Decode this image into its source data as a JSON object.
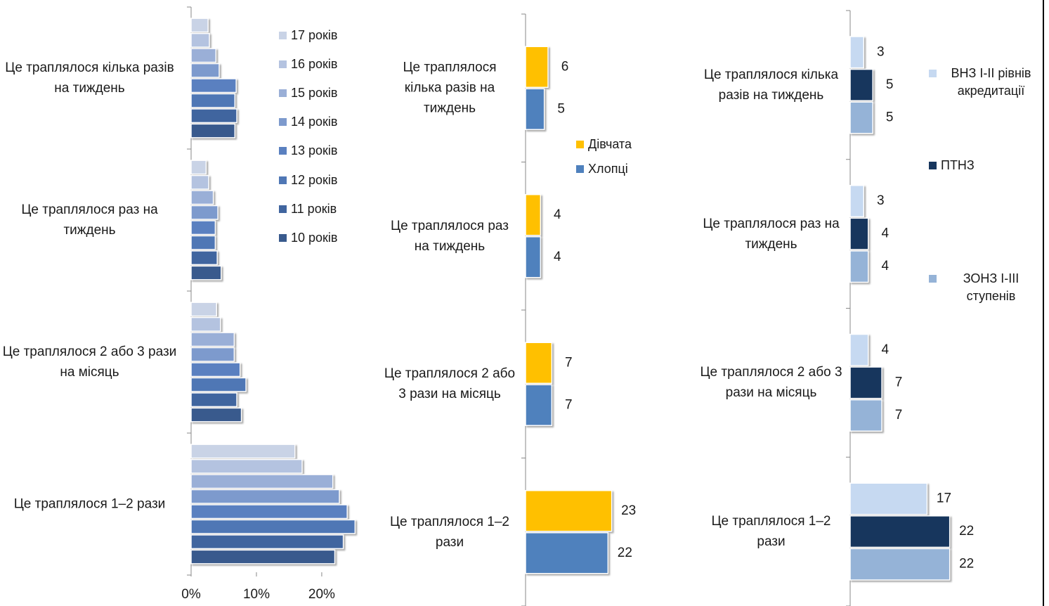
{
  "chart_data": [
    {
      "type": "bar",
      "orientation": "horizontal",
      "categories": [
        "Це траплялося кілька разів на тиждень",
        "Це траплялося раз на тиждень",
        "Це траплялося 2 або 3 рази на місяць",
        "Це траплялося 1–2 рази"
      ],
      "series": [
        {
          "name": "17 років",
          "color": "#c9d3e6",
          "values": [
            2.6,
            2.3,
            3.9,
            15.9
          ]
        },
        {
          "name": "16 років",
          "color": "#b4c3e0",
          "values": [
            2.8,
            2.7,
            4.5,
            17.0
          ]
        },
        {
          "name": "15 років",
          "color": "#9aafd7",
          "values": [
            3.8,
            3.4,
            6.6,
            21.7
          ]
        },
        {
          "name": "14 років",
          "color": "#7d9acd",
          "values": [
            4.3,
            4.1,
            6.6,
            22.7
          ]
        },
        {
          "name": "13 років",
          "color": "#5a80c0",
          "values": [
            6.9,
            3.7,
            7.5,
            23.9
          ]
        },
        {
          "name": "12 років",
          "color": "#4f77b5",
          "values": [
            6.7,
            3.7,
            8.4,
            25.1
          ]
        },
        {
          "name": "11 років",
          "color": "#40659f",
          "values": [
            7.0,
            4.0,
            7.0,
            23.3
          ]
        },
        {
          "name": "10 років",
          "color": "#395a8d",
          "values": [
            6.7,
            4.6,
            7.7,
            22.0
          ]
        }
      ],
      "xlim": [
        0,
        27
      ],
      "xticks": [
        {
          "value": 0,
          "label": "0%"
        },
        {
          "value": 10,
          "label": "10%"
        },
        {
          "value": 20,
          "label": "20%"
        }
      ]
    },
    {
      "type": "bar",
      "orientation": "horizontal",
      "categories": [
        "Це траплялося кілька разів на тиждень",
        "Це траплялося раз на тиждень",
        "Це траплялося 2 або 3 рази на місяць",
        "Це траплялося 1–2 рази"
      ],
      "series": [
        {
          "name": "Дівчата",
          "color": "#ffc000",
          "values": [
            6,
            4,
            7,
            23
          ]
        },
        {
          "name": "Хлопці",
          "color": "#4f81bd",
          "values": [
            5,
            4,
            7,
            22
          ]
        }
      ],
      "xlim": [
        0,
        30
      ]
    },
    {
      "type": "bar",
      "orientation": "horizontal",
      "categories": [
        "Це траплялося кілька разів на тиждень",
        "Це траплялося раз на тиждень",
        "Це траплялося 2 або 3 рази на місяць",
        "Це траплялося 1–2 рази"
      ],
      "series": [
        {
          "name": "ВНЗ І-ІІ рівнів акредитації",
          "color": "#c6d9f1",
          "values": [
            3,
            3,
            4,
            17
          ]
        },
        {
          "name": "ПТНЗ",
          "color": "#17365d",
          "values": [
            5,
            4,
            7,
            22
          ]
        },
        {
          "name": "ЗОНЗ І-ІІІ ступенів",
          "color": "#95b3d7",
          "values": [
            5,
            4,
            7,
            22
          ]
        }
      ],
      "xlim": [
        0,
        25
      ]
    }
  ]
}
